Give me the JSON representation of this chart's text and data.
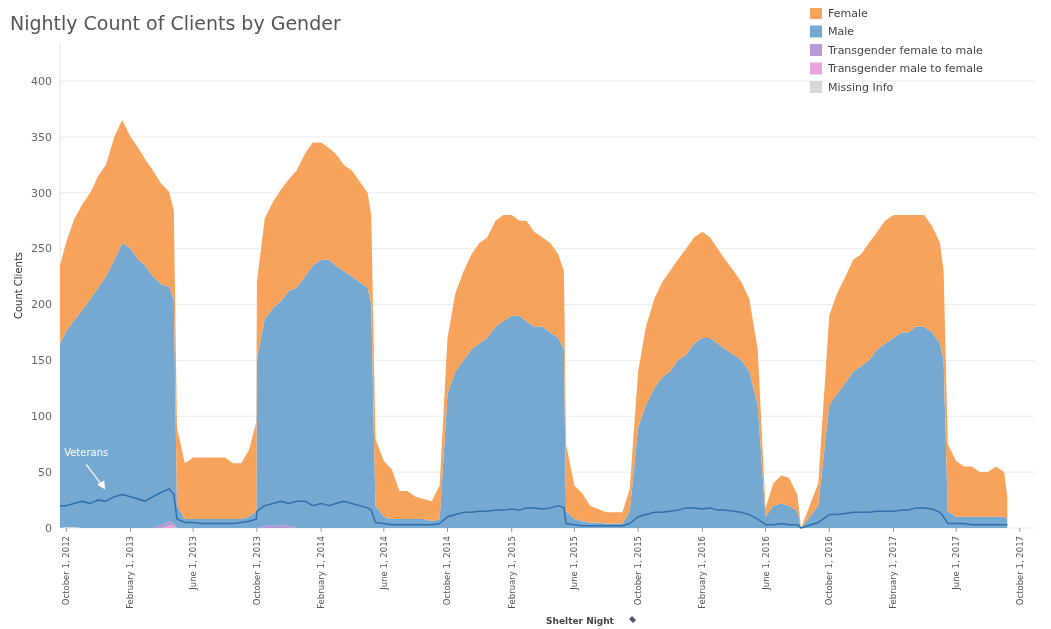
{
  "chart_data": {
    "type": "area",
    "title": "Nightly Count of Clients by Gender",
    "xlabel": "Shelter Night",
    "ylabel": "Count Clients",
    "stacked": true,
    "grid": "y",
    "legend": "top right",
    "xlim": [
      "2012-09-19",
      "2017-10-30"
    ],
    "ylim": [
      0,
      434
    ],
    "yticks": [
      0,
      50,
      100,
      150,
      200,
      250,
      300,
      350,
      400
    ],
    "xticks": [
      {
        "value": "2012-10-01",
        "label": "October 1, 2012"
      },
      {
        "value": "2013-02-01",
        "label": "February 1, 2013"
      },
      {
        "value": "2013-06-01",
        "label": "June 1, 2013"
      },
      {
        "value": "2013-10-01",
        "label": "October 1, 2013"
      },
      {
        "value": "2014-02-01",
        "label": "February 1, 2014"
      },
      {
        "value": "2014-06-01",
        "label": "June 1, 2014"
      },
      {
        "value": "2014-10-01",
        "label": "October 1, 2014"
      },
      {
        "value": "2015-02-01",
        "label": "February 1, 2015"
      },
      {
        "value": "2015-06-01",
        "label": "June 1, 2015"
      },
      {
        "value": "2015-10-01",
        "label": "October 1, 2015"
      },
      {
        "value": "2016-02-01",
        "label": "February 1, 2016"
      },
      {
        "value": "2016-06-01",
        "label": "June 1, 2016"
      },
      {
        "value": "2016-10-01",
        "label": "October 1, 2016"
      },
      {
        "value": "2017-02-01",
        "label": "February 1, 2017"
      },
      {
        "value": "2017-06-01",
        "label": "June 1, 2017"
      },
      {
        "value": "2017-10-01",
        "label": "October 1, 2017"
      }
    ],
    "x": [
      "2012-09-19",
      "2012-10-01",
      "2012-10-16",
      "2012-11-01",
      "2012-11-16",
      "2012-12-01",
      "2012-12-16",
      "2013-01-01",
      "2013-01-16",
      "2013-02-01",
      "2013-02-16",
      "2013-03-01",
      "2013-03-16",
      "2013-04-01",
      "2013-04-16",
      "2013-04-25",
      "2013-05-01",
      "2013-05-16",
      "2013-06-01",
      "2013-06-16",
      "2013-07-01",
      "2013-07-16",
      "2013-08-01",
      "2013-08-16",
      "2013-09-01",
      "2013-09-16",
      "2013-09-30",
      "2013-10-01",
      "2013-10-16",
      "2013-11-01",
      "2013-11-16",
      "2013-12-01",
      "2013-12-16",
      "2014-01-01",
      "2014-01-16",
      "2014-02-01",
      "2014-02-16",
      "2014-03-01",
      "2014-03-16",
      "2014-04-01",
      "2014-04-16",
      "2014-05-01",
      "2014-05-08",
      "2014-05-16",
      "2014-06-01",
      "2014-06-16",
      "2014-07-01",
      "2014-07-16",
      "2014-08-01",
      "2014-08-16",
      "2014-09-01",
      "2014-09-16",
      "2014-10-01",
      "2014-10-16",
      "2014-11-01",
      "2014-11-16",
      "2014-12-01",
      "2014-12-16",
      "2015-01-01",
      "2015-01-16",
      "2015-02-01",
      "2015-02-16",
      "2015-03-01",
      "2015-03-16",
      "2015-04-01",
      "2015-04-16",
      "2015-05-01",
      "2015-05-12",
      "2015-05-16",
      "2015-06-01",
      "2015-06-16",
      "2015-07-01",
      "2015-07-16",
      "2015-08-01",
      "2015-08-16",
      "2015-09-01",
      "2015-09-15",
      "2015-10-01",
      "2015-10-16",
      "2015-11-01",
      "2015-11-16",
      "2015-12-01",
      "2015-12-16",
      "2016-01-01",
      "2016-01-16",
      "2016-02-01",
      "2016-02-16",
      "2016-03-01",
      "2016-03-16",
      "2016-04-01",
      "2016-04-16",
      "2016-05-01",
      "2016-05-17",
      "2016-06-01",
      "2016-06-16",
      "2016-07-01",
      "2016-07-16",
      "2016-08-01",
      "2016-08-08",
      "2016-09-10",
      "2016-10-01",
      "2016-10-16",
      "2016-11-01",
      "2016-11-16",
      "2016-12-01",
      "2016-12-16",
      "2017-01-01",
      "2017-01-16",
      "2017-02-01",
      "2017-02-16",
      "2017-03-01",
      "2017-03-16",
      "2017-04-01",
      "2017-04-16",
      "2017-05-01",
      "2017-05-08",
      "2017-05-16",
      "2017-06-01",
      "2017-06-16",
      "2017-07-01",
      "2017-07-16",
      "2017-08-01",
      "2017-08-16",
      "2017-09-01",
      "2017-09-07"
    ],
    "series": [
      {
        "name": "Missing Info",
        "color": "#d7d7d7",
        "values": [
          0,
          1,
          1,
          0,
          0,
          0,
          0,
          0,
          0,
          0,
          0,
          0,
          0,
          0,
          0,
          0,
          0,
          0,
          0,
          0,
          0,
          0,
          0,
          0,
          0,
          0,
          0,
          0,
          0,
          0,
          0,
          0,
          0,
          0,
          0,
          0,
          0,
          0,
          0,
          0,
          0,
          0,
          0,
          0,
          0,
          0,
          0,
          0,
          0,
          0,
          0,
          0,
          0,
          0,
          0,
          0,
          0,
          0,
          0,
          0,
          0,
          0,
          0,
          0,
          0,
          0,
          0,
          0,
          0,
          0,
          0,
          0,
          0,
          0,
          0,
          0,
          0,
          0,
          0,
          0,
          0,
          0,
          0,
          0,
          0,
          0,
          0,
          0,
          0,
          0,
          0,
          0,
          0,
          0,
          0,
          0,
          0,
          0,
          0,
          0,
          0,
          0,
          0,
          0,
          0,
          0,
          0,
          0,
          0,
          0,
          0,
          0,
          0,
          0,
          0,
          0,
          0,
          0,
          0,
          0,
          0,
          0,
          0,
          0,
          0
        ]
      },
      {
        "name": "Transgender male to female",
        "color": "#e8a6d9",
        "values": [
          0,
          0,
          0,
          0,
          0,
          0,
          0,
          0,
          0,
          0,
          0,
          0,
          0,
          0,
          2,
          2,
          0,
          0,
          0,
          0,
          0,
          0,
          0,
          0,
          0,
          0,
          0,
          0,
          0,
          0,
          0,
          0,
          0,
          0,
          0,
          0,
          0,
          0,
          0,
          0,
          0,
          0,
          0,
          0,
          0,
          0,
          0,
          0,
          0,
          0,
          0,
          0,
          0,
          0,
          0,
          0,
          0,
          0,
          0,
          0,
          0,
          0,
          0,
          0,
          0,
          0,
          0,
          0,
          0,
          0,
          0,
          0,
          0,
          0,
          0,
          0,
          0,
          0,
          0,
          0,
          0,
          0,
          0,
          0,
          0,
          0,
          0,
          0,
          0,
          0,
          0,
          0,
          0,
          0,
          0,
          0,
          0,
          0,
          0,
          0,
          0,
          0,
          0,
          0,
          0,
          0,
          0,
          0,
          0,
          0,
          0,
          0,
          0,
          0,
          0,
          0,
          0,
          0,
          0,
          0,
          0,
          0,
          0,
          0,
          0
        ]
      },
      {
        "name": "Transgender female to male",
        "color": "#b59ad6",
        "values": [
          0,
          0,
          0,
          0,
          0,
          0,
          0,
          0,
          0,
          0,
          0,
          0,
          0,
          3,
          4,
          2,
          0,
          0,
          0,
          0,
          0,
          0,
          0,
          0,
          0,
          0,
          0,
          0,
          2,
          2,
          3,
          2,
          0,
          0,
          0,
          0,
          0,
          0,
          0,
          0,
          0,
          0,
          0,
          0,
          0,
          0,
          0,
          0,
          0,
          0,
          0,
          0,
          0,
          0,
          0,
          0,
          0,
          0,
          0,
          0,
          0,
          0,
          0,
          0,
          0,
          0,
          0,
          0,
          0,
          0,
          0,
          0,
          0,
          0,
          0,
          0,
          0,
          0,
          0,
          0,
          0,
          0,
          0,
          0,
          0,
          0,
          0,
          0,
          0,
          0,
          0,
          0,
          0,
          0,
          0,
          0,
          0,
          0,
          0,
          0,
          0,
          0,
          0,
          0,
          0,
          0,
          0,
          0,
          0,
          0,
          0,
          0,
          0,
          0,
          0,
          0,
          0,
          0,
          0,
          0,
          0,
          0,
          0,
          0,
          0
        ]
      },
      {
        "name": "Male",
        "color": "#75a9d2",
        "values": [
          165,
          175,
          185,
          195,
          205,
          215,
          225,
          240,
          255,
          250,
          240,
          235,
          225,
          215,
          210,
          200,
          20,
          8,
          8,
          8,
          8,
          8,
          8,
          8,
          8,
          10,
          15,
          150,
          185,
          195,
          200,
          210,
          215,
          225,
          235,
          240,
          240,
          235,
          230,
          225,
          220,
          215,
          200,
          20,
          10,
          8,
          8,
          8,
          8,
          8,
          6,
          8,
          120,
          140,
          150,
          160,
          165,
          170,
          180,
          185,
          190,
          190,
          185,
          180,
          180,
          175,
          170,
          160,
          15,
          8,
          6,
          5,
          5,
          4,
          4,
          4,
          15,
          90,
          110,
          125,
          135,
          140,
          150,
          155,
          165,
          170,
          170,
          165,
          160,
          155,
          150,
          140,
          110,
          10,
          20,
          22,
          20,
          15,
          0,
          20,
          110,
          120,
          130,
          140,
          145,
          150,
          160,
          165,
          170,
          175,
          175,
          180,
          180,
          175,
          165,
          150,
          15,
          10,
          10,
          10,
          10,
          10,
          10,
          10,
          8
        ]
      },
      {
        "name": "Female",
        "color": "#f7a35c",
        "values": [
          70,
          80,
          90,
          95,
          95,
          100,
          100,
          110,
          110,
          100,
          100,
          95,
          95,
          90,
          85,
          80,
          70,
          50,
          55,
          55,
          55,
          55,
          55,
          50,
          50,
          60,
          80,
          70,
          90,
          95,
          100,
          100,
          105,
          110,
          110,
          105,
          100,
          100,
          95,
          95,
          90,
          85,
          80,
          60,
          50,
          45,
          25,
          25,
          20,
          18,
          18,
          30,
          50,
          70,
          80,
          85,
          90,
          90,
          95,
          95,
          90,
          85,
          90,
          85,
          80,
          80,
          75,
          70,
          60,
          30,
          25,
          15,
          12,
          10,
          10,
          10,
          20,
          50,
          70,
          80,
          85,
          90,
          90,
          95,
          95,
          95,
          90,
          85,
          80,
          75,
          70,
          65,
          50,
          8,
          20,
          25,
          25,
          15,
          0,
          20,
          80,
          90,
          95,
          100,
          100,
          105,
          105,
          110,
          110,
          105,
          105,
          100,
          100,
          95,
          90,
          80,
          60,
          50,
          45,
          45,
          40,
          40,
          45,
          40,
          20
        ]
      },
      {
        "name": "Veterans",
        "type": "line",
        "color": "#2f6ea8",
        "values": [
          20,
          20,
          22,
          24,
          22,
          25,
          24,
          28,
          30,
          28,
          26,
          24,
          28,
          32,
          35,
          30,
          8,
          5,
          5,
          4,
          4,
          4,
          4,
          4,
          5,
          6,
          8,
          15,
          20,
          22,
          24,
          22,
          24,
          24,
          20,
          22,
          20,
          22,
          24,
          22,
          20,
          18,
          16,
          5,
          4,
          3,
          3,
          3,
          3,
          3,
          3,
          4,
          10,
          12,
          14,
          14,
          15,
          15,
          16,
          16,
          17,
          16,
          18,
          18,
          17,
          18,
          20,
          18,
          4,
          3,
          2,
          2,
          2,
          2,
          2,
          2,
          4,
          10,
          12,
          14,
          14,
          15,
          16,
          18,
          18,
          17,
          18,
          16,
          16,
          15,
          14,
          12,
          8,
          3,
          3,
          4,
          3,
          3,
          0,
          5,
          12,
          12,
          13,
          14,
          14,
          14,
          15,
          15,
          15,
          16,
          16,
          18,
          18,
          17,
          14,
          10,
          4,
          4,
          4,
          3,
          3,
          3,
          3,
          3,
          3
        ]
      }
    ]
  }
}
